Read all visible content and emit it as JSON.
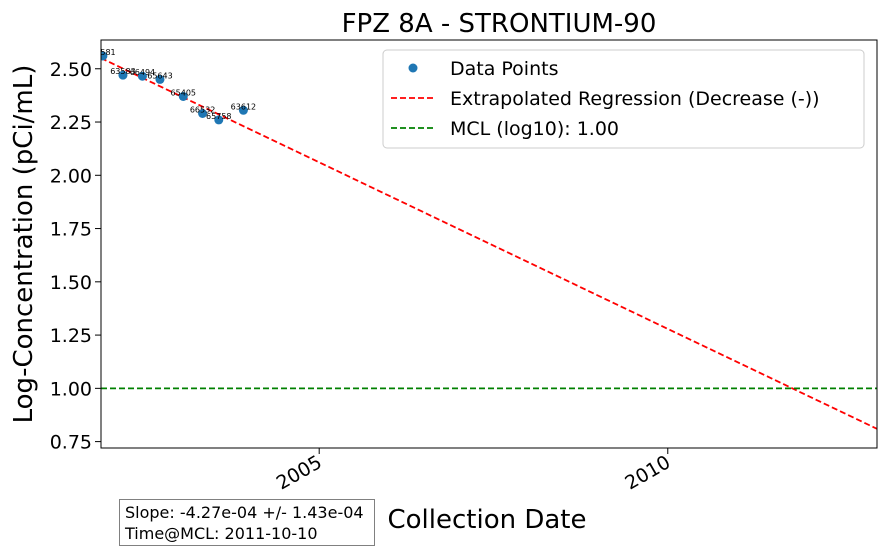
{
  "chart_data": {
    "type": "scatter",
    "title": "FPZ  8A - STRONTIUM-90",
    "xlabel": "Collection Date",
    "ylabel": "Log-Concentration (pCi/mL)",
    "xlim": [
      "2001-11-15",
      "2013-01-01"
    ],
    "ylim": [
      0.72,
      2.635
    ],
    "x_ticks": [
      {
        "date": "2005-01-01",
        "label": "2005"
      },
      {
        "date": "2010-01-01",
        "label": "2010"
      }
    ],
    "y_ticks": [
      {
        "value": 0.75,
        "label": "0.75"
      },
      {
        "value": 1.0,
        "label": "1.00"
      },
      {
        "value": 1.25,
        "label": "1.25"
      },
      {
        "value": 1.5,
        "label": "1.50"
      },
      {
        "value": 1.75,
        "label": "1.75"
      },
      {
        "value": 2.0,
        "label": "2.00"
      },
      {
        "value": 2.25,
        "label": "2.25"
      },
      {
        "value": 2.5,
        "label": "2.50"
      }
    ],
    "grid": false,
    "legend_position": "top-right",
    "series": [
      {
        "name": "Data Points",
        "kind": "scatter",
        "color": "#1f77b4",
        "points": [
          {
            "x": "2001-11-25",
            "y": 2.56,
            "label": "66581"
          },
          {
            "x": "2002-03-10",
            "y": 2.47,
            "label": "63583"
          },
          {
            "x": "2002-06-20",
            "y": 2.465,
            "label": "66494"
          },
          {
            "x": "2002-09-20",
            "y": 2.45,
            "label": "65643"
          },
          {
            "x": "2003-01-20",
            "y": 2.37,
            "label": "65405"
          },
          {
            "x": "2003-05-01",
            "y": 2.29,
            "label": "66532"
          },
          {
            "x": "2003-07-25",
            "y": 2.26,
            "label": "65758"
          },
          {
            "x": "2003-12-01",
            "y": 2.305,
            "label": "63612"
          }
        ]
      },
      {
        "name": "Extrapolated Regression (Decrease (-))",
        "kind": "line",
        "color": "#ff0000",
        "dash": true,
        "points": [
          {
            "x": "2001-11-15",
            "y": 2.55
          },
          {
            "x": "2013-01-01",
            "y": 0.81
          }
        ]
      },
      {
        "name": "MCL (log10): 1.00",
        "kind": "hline",
        "color": "#008000",
        "dash": true,
        "y": 1.0
      }
    ],
    "annotations": [
      "Slope: -4.27e-04 +/- 1.43e-04",
      "Time@MCL: 2011-10-10"
    ]
  },
  "stats": {
    "slope": "Slope: -4.27e-04 +/- 1.43e-04",
    "time_at_mcl": "Time@MCL: 2011-10-10"
  }
}
